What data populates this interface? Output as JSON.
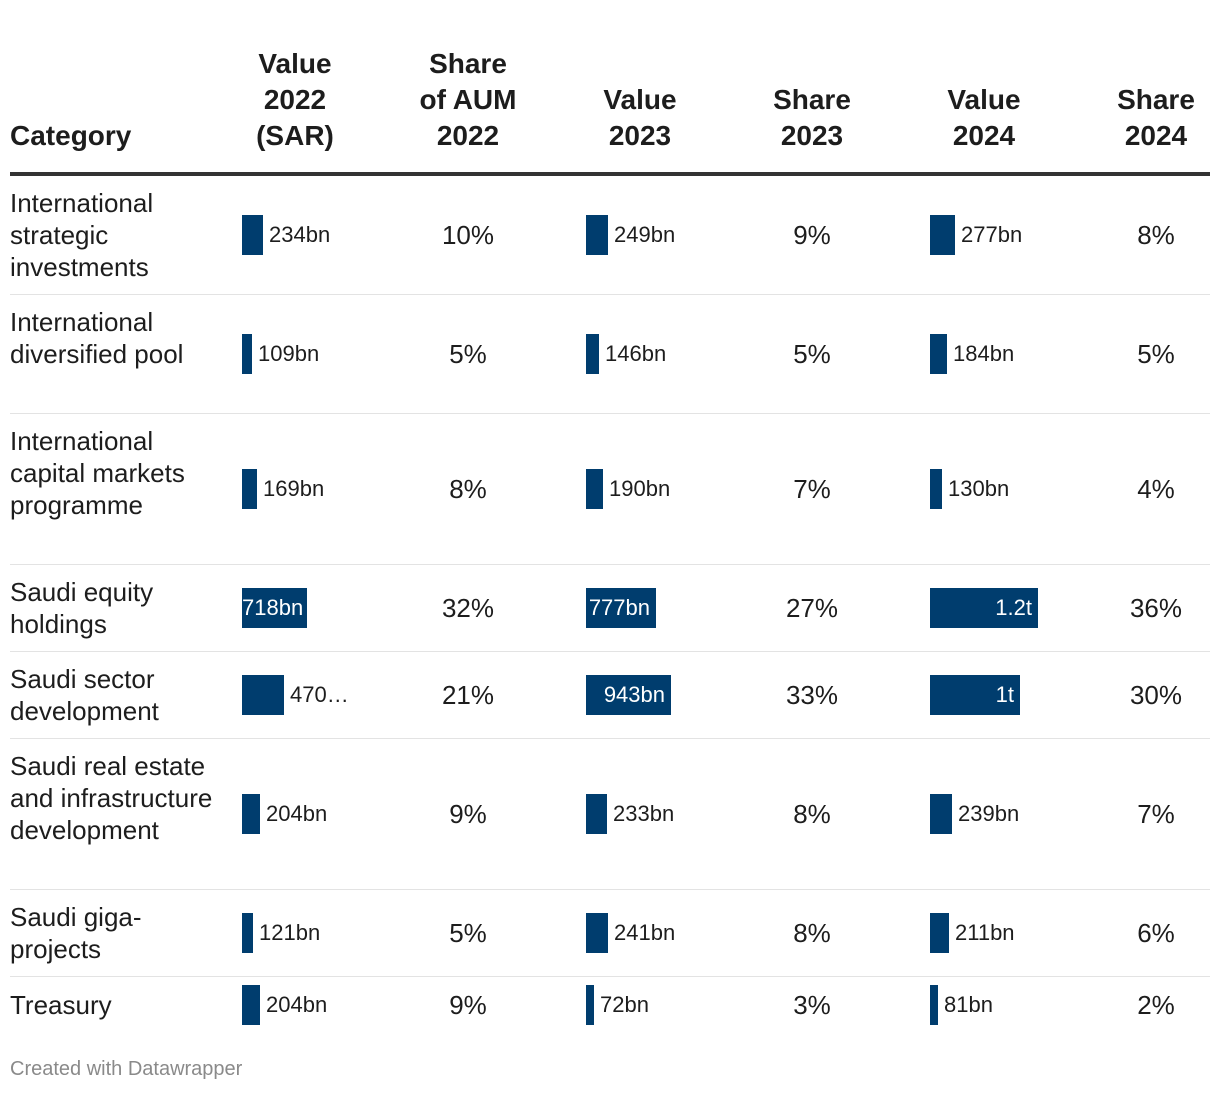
{
  "chart_data": {
    "type": "table",
    "columns": [
      "Category",
      "Value 2022 (SAR)",
      "Share of AUM 2022",
      "Value 2023",
      "Share 2023",
      "Value 2024",
      "Share 2024"
    ],
    "header_lines": [
      [
        "Category"
      ],
      [
        "Value",
        "2022",
        "(SAR)"
      ],
      [
        "Share",
        "of AUM",
        "2022"
      ],
      [
        "Value",
        "2023"
      ],
      [
        "Share",
        "2023"
      ],
      [
        "Value",
        "2024"
      ],
      [
        "Share",
        "2024"
      ]
    ],
    "value_unit": "SAR bn",
    "bar_max": 1200,
    "bar_color": "#003d6e",
    "rows": [
      {
        "category": "International strategic investments",
        "v2022": 234,
        "l2022": "234bn",
        "s2022": "10%",
        "v2023": 249,
        "l2023": "249bn",
        "s2023": "9%",
        "v2024": 277,
        "l2024": "277bn",
        "s2024": "8%"
      },
      {
        "category": "International diversified pool",
        "v2022": 109,
        "l2022": "109bn",
        "s2022": "5%",
        "v2023": 146,
        "l2023": "146bn",
        "s2023": "5%",
        "v2024": 184,
        "l2024": "184bn",
        "s2024": "5%"
      },
      {
        "category": "International capital markets programme",
        "v2022": 169,
        "l2022": "169bn",
        "s2022": "8%",
        "v2023": 190,
        "l2023": "190bn",
        "s2023": "7%",
        "v2024": 130,
        "l2024": "130bn",
        "s2024": "4%"
      },
      {
        "category": "Saudi equity holdings",
        "v2022": 718,
        "l2022": "718bn",
        "s2022": "32%",
        "v2023": 777,
        "l2023": "777bn",
        "s2023": "27%",
        "v2024": 1200,
        "l2024": "1.2t",
        "s2024": "36%"
      },
      {
        "category": "Saudi sector development",
        "v2022": 470,
        "l2022": "470…",
        "s2022": "21%",
        "v2023": 943,
        "l2023": "943bn",
        "s2023": "33%",
        "v2024": 1000,
        "l2024": "1t",
        "s2024": "30%"
      },
      {
        "category": "Saudi real estate and infrastructure development",
        "v2022": 204,
        "l2022": "204bn",
        "s2022": "9%",
        "v2023": 233,
        "l2023": "233bn",
        "s2023": "8%",
        "v2024": 239,
        "l2024": "239bn",
        "s2024": "7%"
      },
      {
        "category": "Saudi giga-projects",
        "v2022": 121,
        "l2022": "121bn",
        "s2022": "5%",
        "v2023": 241,
        "l2023": "241bn",
        "s2023": "8%",
        "v2024": 211,
        "l2024": "211bn",
        "s2024": "6%"
      },
      {
        "category": "Treasury",
        "v2022": 204,
        "l2022": "204bn",
        "s2022": "9%",
        "v2023": 72,
        "l2023": "72bn",
        "s2023": "3%",
        "v2024": 81,
        "l2024": "81bn",
        "s2024": "2%"
      }
    ]
  },
  "footer": "Created with Datawrapper"
}
